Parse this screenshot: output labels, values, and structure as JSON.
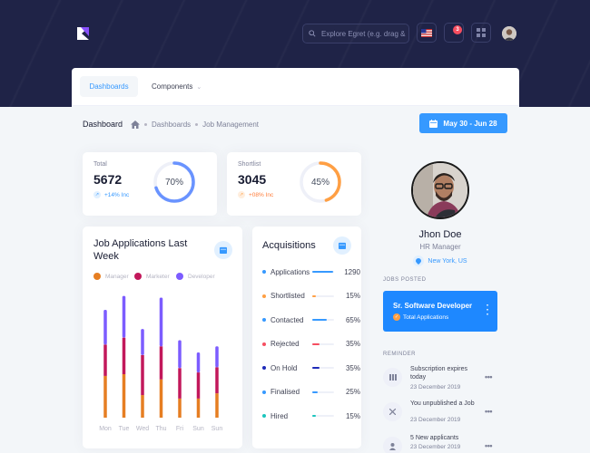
{
  "header": {
    "search_placeholder": "Explore Egret (e.g. drag & drop)",
    "notification_count": "3",
    "colors": {
      "bg": "#1f2347",
      "accent": "#3699ff",
      "danger": "#f64e60"
    }
  },
  "nav": {
    "tabs": [
      {
        "label": "Dashboards"
      },
      {
        "label": "Components"
      }
    ]
  },
  "subheader": {
    "title": "Dashboard",
    "breadcrumb": [
      "Dashboards",
      "Job Management"
    ],
    "date_range": "May 30 - Jun 28"
  },
  "stats": [
    {
      "label": "Total",
      "value": "5672",
      "change": "+14% Inc",
      "percent": 70,
      "percent_label": "70%",
      "color": "#6993ff"
    },
    {
      "label": "Shortlist",
      "value": "3045",
      "change": "+08% Inc",
      "percent": 45,
      "percent_label": "45%",
      "color": "#ff9f43"
    }
  ],
  "applications": {
    "title": "Job Applications Last Week",
    "legend": [
      {
        "name": "Manager",
        "color": "#e67e22"
      },
      {
        "name": "Marketer",
        "color": "#c2185b"
      },
      {
        "name": "Developer",
        "color": "#7c5cff"
      }
    ],
    "chart_data": {
      "type": "bar",
      "categories": [
        "Mon",
        "Tue",
        "Wed",
        "Thu",
        "Fri",
        "Sun",
        "Sun"
      ],
      "series": [
        {
          "name": "Manager",
          "values": [
            48,
            50,
            26,
            44,
            22,
            22,
            28
          ]
        },
        {
          "name": "Marketer",
          "values": [
            36,
            42,
            46,
            38,
            35,
            30,
            30
          ]
        },
        {
          "name": "Developer",
          "values": [
            40,
            48,
            30,
            56,
            32,
            23,
            24
          ]
        }
      ]
    }
  },
  "acquisitions": {
    "title": "Acquisitions",
    "items": [
      {
        "label": "Applications",
        "value": "1290",
        "percent": 95,
        "color": "#3699ff"
      },
      {
        "label": "Shortlisted",
        "value": "15%",
        "percent": 15,
        "color": "#ff9f43"
      },
      {
        "label": "Contacted",
        "value": "65%",
        "percent": 65,
        "color": "#3699ff"
      },
      {
        "label": "Rejected",
        "value": "35%",
        "percent": 35,
        "color": "#f64e60"
      },
      {
        "label": "On Hold",
        "value": "35%",
        "percent": 35,
        "color": "#1e2bb8"
      },
      {
        "label": "Finalised",
        "value": "25%",
        "percent": 25,
        "color": "#3699ff"
      },
      {
        "label": "Hired",
        "value": "15%",
        "percent": 15,
        "color": "#1bc5bd"
      }
    ]
  },
  "profile": {
    "name": "Jhon Doe",
    "role": "HR Manager",
    "location": "New York, US"
  },
  "jobs": {
    "section_label": "JOBS POSTED",
    "title": "Sr. Software Developer",
    "subtitle": "Total Applications"
  },
  "reminders": {
    "section_label": "REMINDER",
    "items": [
      {
        "title": "Subscription expires today",
        "date": "23 December 2019",
        "icon": "bars-icon"
      },
      {
        "title": "You unpublished a Job",
        "date": "23 December 2019",
        "icon": "close-icon"
      },
      {
        "title": "5 New applicants",
        "date": "23 December 2019",
        "icon": "user-icon"
      }
    ]
  }
}
